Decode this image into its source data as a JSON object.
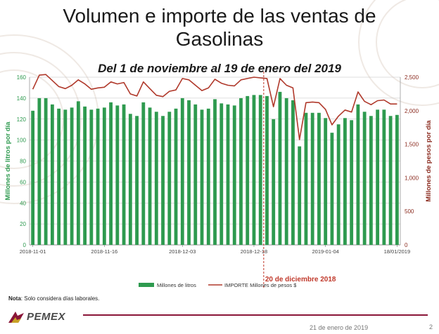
{
  "slide": {
    "title_line1": "Volumen e importe de las ventas de",
    "title_line2": "Gasolinas",
    "subtitle": "Del 1 de noviembre al 19 de enero del 2019",
    "note_label": "Nota",
    "note_text": ": Solo considera días laborales.",
    "logo_text": "PEMEX",
    "footer_date": "21 de enero de 2019",
    "page_number": "2"
  },
  "colors": {
    "bars": "#2e9a4f",
    "line": "#b0392b",
    "left_axis": "#2e9a4f",
    "right_axis": "#8b2b1f",
    "marker": "#c0392b",
    "grid": "#bfbfbf",
    "brand": "#8a1538"
  },
  "chart_data": {
    "type": "bar",
    "title": "Del 1 de noviembre al 19 de enero del 2019",
    "ylabel": "Millones de litros por día",
    "y2label": "Millones de pesos por día",
    "ylim": [
      0,
      160
    ],
    "y2lim": [
      0,
      2500
    ],
    "yticks": [
      0,
      20,
      40,
      60,
      80,
      100,
      120,
      140,
      160
    ],
    "y2ticks": [
      "0",
      "500",
      "1,000",
      "1,500",
      "2,000",
      "2,500"
    ],
    "y2tick_values": [
      0,
      500,
      1000,
      1500,
      2000,
      2500
    ],
    "grid": true,
    "legend_position": "bottom",
    "xtick_labels": [
      {
        "index": 0,
        "label": "2018-11-01"
      },
      {
        "index": 11,
        "label": "2018-11-16"
      },
      {
        "index": 23,
        "label": "2018-12-03"
      },
      {
        "index": 34,
        "label": "2018-12-18"
      },
      {
        "index": 45,
        "label": "2019-01-04"
      },
      {
        "index": 56,
        "label": "18/01/2019"
      }
    ],
    "annotation": {
      "label": "20 de diciembre 2018",
      "index": 35.5
    },
    "series": [
      {
        "name": "Millones de litros",
        "type": "bar",
        "axis": "left",
        "values": [
          128,
          140,
          140,
          134,
          130,
          129,
          131,
          137,
          132,
          129,
          130,
          131,
          136,
          133,
          134,
          125,
          123,
          136,
          131,
          127,
          123,
          127,
          130,
          140,
          138,
          134,
          129,
          130,
          139,
          135,
          134,
          133,
          140,
          142,
          143,
          143,
          142,
          120,
          146,
          140,
          138,
          94,
          126,
          126,
          126,
          121,
          107,
          115,
          121,
          119,
          134,
          127,
          123,
          129,
          129,
          123,
          124
        ]
      },
      {
        "name": "IMPORTE Millones de pesos $",
        "type": "line",
        "axis": "right",
        "values": [
          2320,
          2530,
          2540,
          2450,
          2360,
          2330,
          2380,
          2460,
          2400,
          2320,
          2340,
          2350,
          2430,
          2400,
          2420,
          2250,
          2220,
          2430,
          2330,
          2230,
          2210,
          2290,
          2310,
          2480,
          2460,
          2380,
          2300,
          2340,
          2470,
          2410,
          2380,
          2370,
          2460,
          2480,
          2500,
          2490,
          2480,
          2060,
          2480,
          2380,
          2340,
          1570,
          2120,
          2130,
          2120,
          2020,
          1790,
          1920,
          2010,
          1980,
          2280,
          2140,
          2090,
          2150,
          2160,
          2100,
          2100
        ]
      }
    ]
  }
}
